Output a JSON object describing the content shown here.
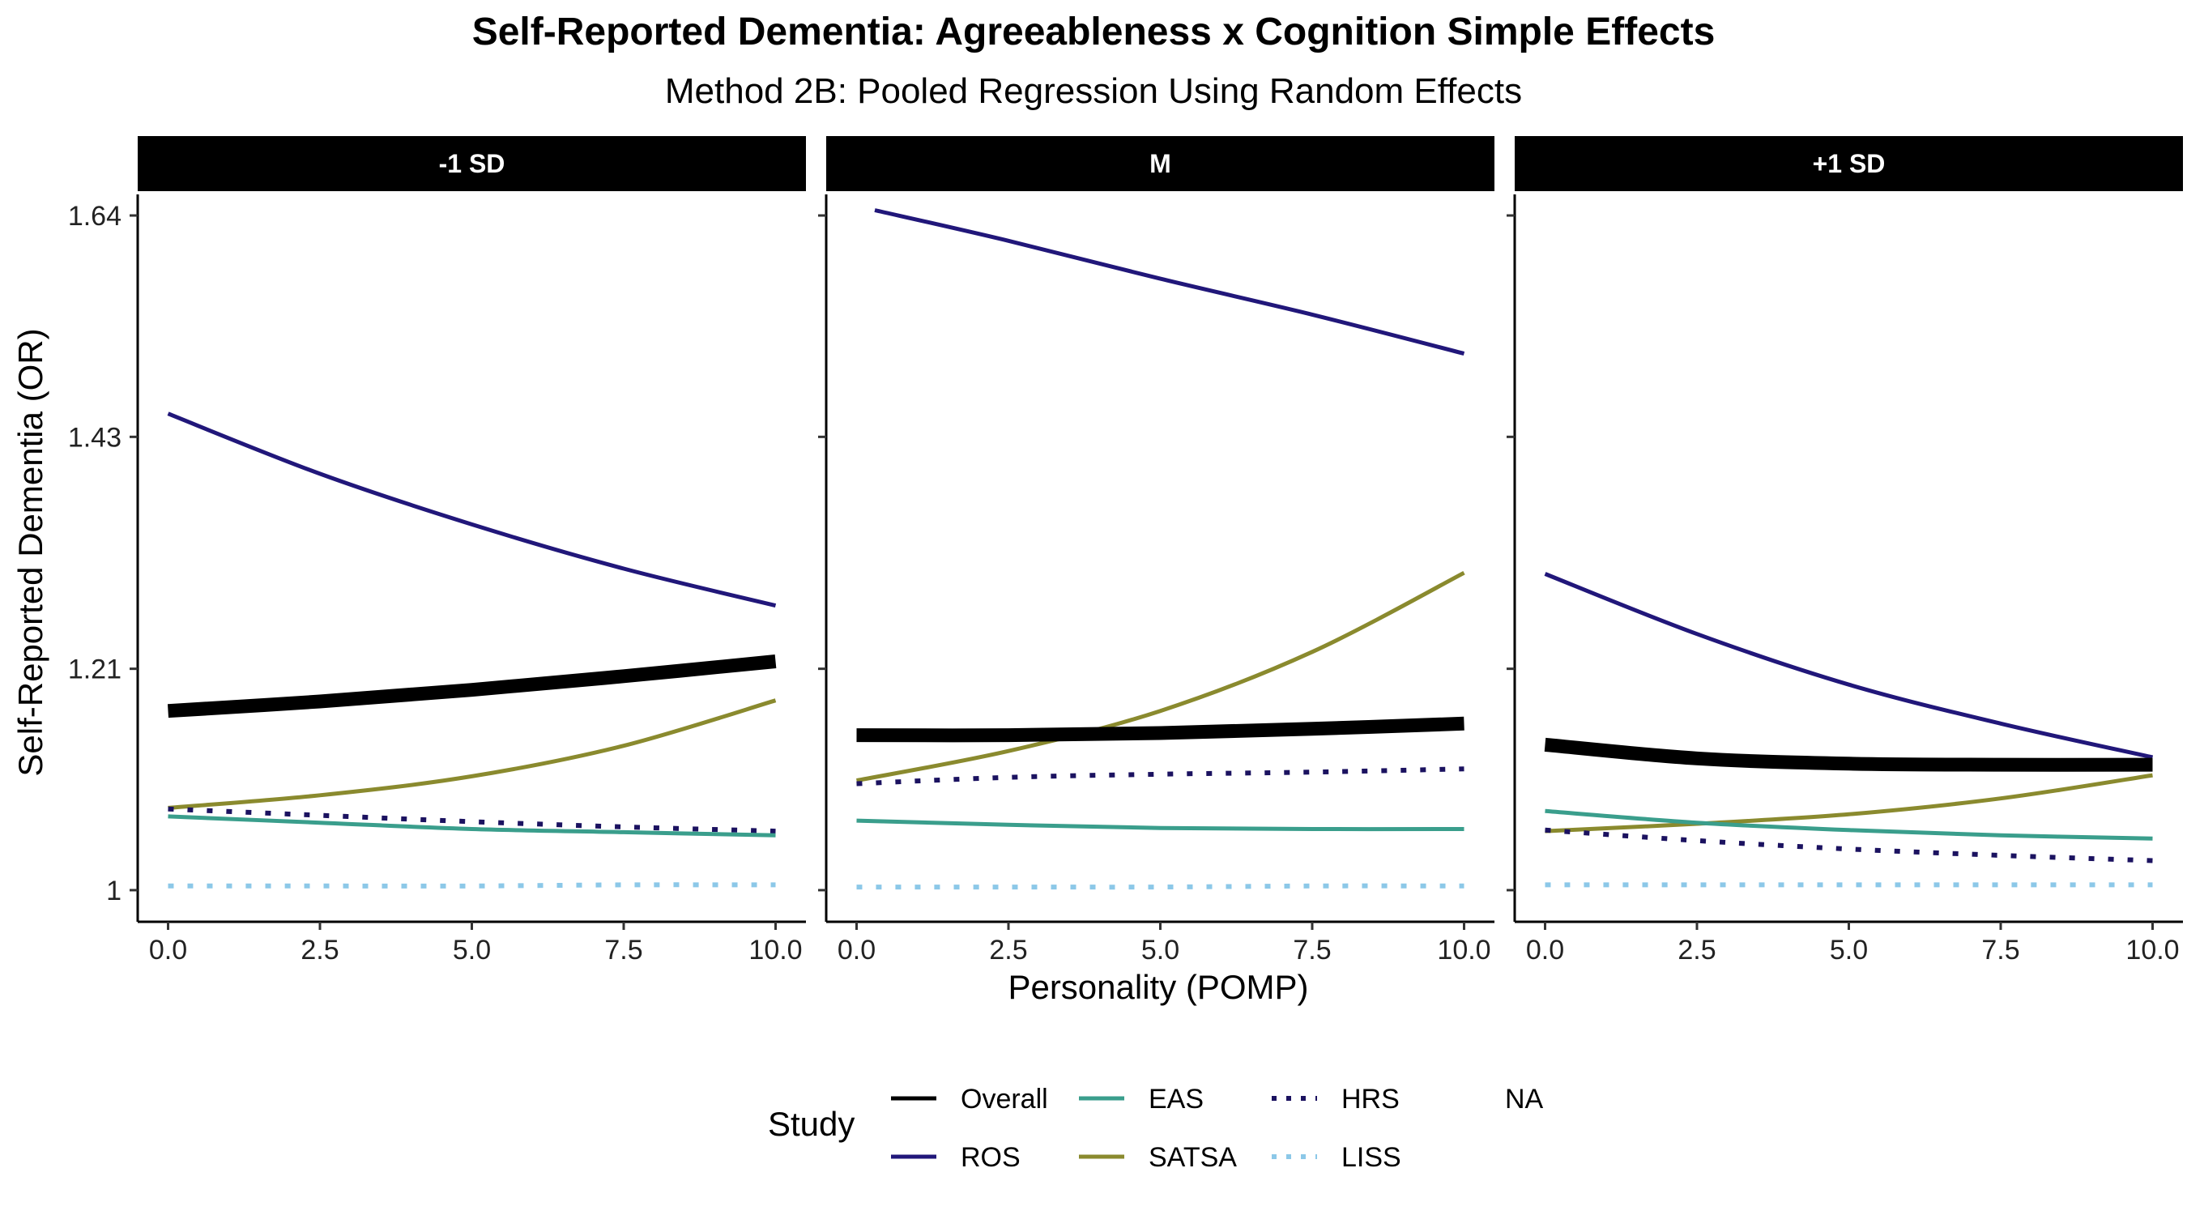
{
  "chart_data": {
    "type": "line",
    "title": "Self-Reported Dementia: Agreeableness x Cognition Simple Effects",
    "subtitle": "Method 2B: Pooled Regression Using Random Effects",
    "xlabel": "Personality (POMP)",
    "ylabel": "Self-Reported Dementia (OR)",
    "xlim": [
      -0.5,
      10.5
    ],
    "ylim": [
      0.97,
      1.66
    ],
    "x_ticks": [
      0,
      2.5,
      5,
      7.5,
      10
    ],
    "x_tick_labels": [
      "0.0",
      "2.5",
      "5.0",
      "7.5",
      "10.0"
    ],
    "y_ticks": [
      1,
      1.21,
      1.43,
      1.64
    ],
    "y_tick_labels": [
      "1",
      "1.21",
      "1.43",
      "1.64"
    ],
    "grid": false,
    "legend_placement": "bottom",
    "legend": {
      "title": "Study",
      "entries": [
        {
          "name": "Overall",
          "color": "#000000",
          "dash": "solid"
        },
        {
          "name": "ROS",
          "color": "#21177A",
          "dash": "solid"
        },
        {
          "name": "EAS",
          "color": "#3A9E8C",
          "dash": "solid"
        },
        {
          "name": "SATSA",
          "color": "#8A8A2E",
          "dash": "solid"
        },
        {
          "name": "HRS",
          "color": "#1B1260",
          "dash": "dotted"
        },
        {
          "name": "LISS",
          "color": "#8CC8E8",
          "dash": "dotted"
        },
        {
          "name": "NA",
          "color": "",
          "dash": "none"
        }
      ]
    },
    "panels": [
      {
        "label": "-1 SD",
        "series": [
          {
            "name": "ROS",
            "x": [
              0,
              2.5,
              5,
              7.5,
              10
            ],
            "y": [
              1.452,
              1.395,
              1.347,
              1.305,
              1.27
            ]
          },
          {
            "name": "SATSA",
            "x": [
              0,
              2.5,
              5,
              7.5,
              10
            ],
            "y": [
              1.078,
              1.09,
              1.108,
              1.137,
              1.18
            ]
          },
          {
            "name": "HRS",
            "x": [
              0,
              2.5,
              5,
              7.5,
              10
            ],
            "y": [
              1.077,
              1.071,
              1.065,
              1.06,
              1.056
            ]
          },
          {
            "name": "EAS",
            "x": [
              0,
              2.5,
              5,
              7.5,
              10
            ],
            "y": [
              1.07,
              1.064,
              1.058,
              1.055,
              1.052
            ]
          },
          {
            "name": "LISS",
            "x": [
              0,
              2.5,
              5,
              7.5,
              10
            ],
            "y": [
              1.004,
              1.004,
              1.004,
              1.005,
              1.005
            ]
          },
          {
            "name": "Overall",
            "x": [
              0,
              2.5,
              5,
              7.5,
              10
            ],
            "y": [
              1.17,
              1.179,
              1.19,
              1.203,
              1.217
            ]
          }
        ]
      },
      {
        "label": "M",
        "series": [
          {
            "name": "ROS",
            "x": [
              0.3,
              2.5,
              5,
              7.5,
              10
            ],
            "y": [
              1.645,
              1.616,
              1.58,
              1.546,
              1.509
            ]
          },
          {
            "name": "SATSA",
            "x": [
              0,
              2.5,
              5,
              7.5,
              10
            ],
            "y": [
              1.104,
              1.132,
              1.17,
              1.226,
              1.301
            ]
          },
          {
            "name": "HRS",
            "x": [
              0,
              2.5,
              5,
              7.5,
              10
            ],
            "y": [
              1.101,
              1.107,
              1.11,
              1.112,
              1.115
            ]
          },
          {
            "name": "EAS",
            "x": [
              0,
              2.5,
              5,
              7.5,
              10
            ],
            "y": [
              1.066,
              1.062,
              1.059,
              1.058,
              1.058
            ]
          },
          {
            "name": "LISS",
            "x": [
              0,
              2.5,
              5,
              7.5,
              10
            ],
            "y": [
              1.003,
              1.003,
              1.003,
              1.004,
              1.004
            ]
          },
          {
            "name": "Overall",
            "x": [
              0,
              2.5,
              5,
              7.5,
              10
            ],
            "y": [
              1.147,
              1.147,
              1.149,
              1.153,
              1.158
            ]
          }
        ]
      },
      {
        "label": "+1 SD",
        "series": [
          {
            "name": "ROS",
            "x": [
              0,
              2.5,
              5,
              7.5,
              10
            ],
            "y": [
              1.3,
              1.243,
              1.195,
              1.158,
              1.126
            ]
          },
          {
            "name": "SATSA",
            "x": [
              0,
              2.5,
              5,
              7.5,
              10
            ],
            "y": [
              1.056,
              1.063,
              1.072,
              1.087,
              1.109
            ]
          },
          {
            "name": "HRS",
            "x": [
              0,
              2.5,
              5,
              7.5,
              10
            ],
            "y": [
              1.057,
              1.047,
              1.039,
              1.033,
              1.028
            ]
          },
          {
            "name": "EAS",
            "x": [
              0,
              2.5,
              5,
              7.5,
              10
            ],
            "y": [
              1.075,
              1.064,
              1.057,
              1.052,
              1.049
            ]
          },
          {
            "name": "LISS",
            "x": [
              0,
              2.5,
              5,
              7.5,
              10
            ],
            "y": [
              1.005,
              1.005,
              1.005,
              1.005,
              1.005
            ]
          },
          {
            "name": "Overall",
            "x": [
              0,
              2.5,
              5,
              7.5,
              10
            ],
            "y": [
              1.138,
              1.125,
              1.12,
              1.119,
              1.119
            ]
          }
        ]
      }
    ]
  }
}
